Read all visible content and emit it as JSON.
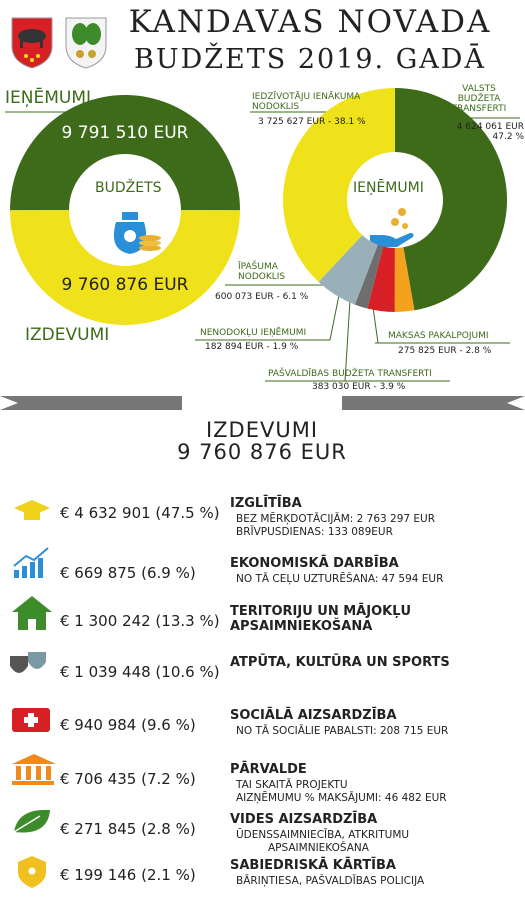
{
  "header": {
    "title_line1": "KANDAVAS NOVADA",
    "title_line2": "BUDŽETS 2019. GADĀ"
  },
  "chart_data": [
    {
      "type": "donut",
      "center_label": "BUDŽETS",
      "series": [
        {
          "name": "IEŅĒMUMI",
          "color": "#3d6b1a",
          "values": [
            9791510
          ],
          "value_labels": [
            "9 791 510 EUR"
          ]
        },
        {
          "name": "IZDEVUMI",
          "color": "#f0e21a",
          "values": [
            9760876
          ],
          "value_labels": [
            "9 760 876 EUR"
          ]
        }
      ]
    },
    {
      "type": "donut",
      "center_label": "IEŅĒMUMI",
      "categories": [
        "VALSTS BUDŽETA TRANSFERTI",
        "MAKSAS PAKALPOJUMI",
        "PAŠVALDĪBAS BUDŽETA TRANSFERTI",
        "NENODOKĻU IEŅĒMUMI",
        "ĪPAŠUMA NODOKLIS",
        "IEDZĪVOTĀJU IENĀKUMA NODOKLIS"
      ],
      "values": [
        4624061,
        275825,
        383030,
        182894,
        600073,
        3725627
      ],
      "value_labels": [
        "4 624 061 EUR 47.2 %",
        "275 825 EUR - 2.8 %",
        "383 030 EUR - 3.9 %",
        "182 894 EUR - 1.9 %",
        "600 073 EUR - 6.1 %",
        "3 725 627 EUR - 38.1 %"
      ],
      "colors": [
        "#3d6b1a",
        "#f4a21c",
        "#d71f26",
        "#6e6e6e",
        "#9ab0b8",
        "#f0e21a"
      ]
    }
  ],
  "expenses": {
    "title": "IZDEVUMI",
    "total": "9 760 876 EUR",
    "items": [
      {
        "amount": "€ 4 632 901 (47.5 %)",
        "name": "IZGLĪTĪBA",
        "details": [
          "BEZ MĒRĶDOTĀCIJĀM: 2 763 297 EUR",
          "BRĪVPUSDIENAS:  133 089EUR"
        ]
      },
      {
        "amount": "€ 669 875 (6.9 %)",
        "name": "EKONOMISKĀ DARBĪBA",
        "details": [
          "NO TĀ CEĻU UZTURĒŠANA: 47 594 EUR"
        ]
      },
      {
        "amount": "€ 1 300 242 (13.3 %)",
        "name": "TERITORIJU UN MĀJOKĻU APSAIMNIEKOŠANA",
        "details": []
      },
      {
        "amount": "€ 1 039 448 (10.6 %)",
        "name": "ATPŪTA, KULTŪRA UN SPORTS",
        "details": []
      },
      {
        "amount": "€ 940 984 (9.6 %)",
        "name": "SOCIĀLĀ AIZSARDZĪBA",
        "details": [
          "NO TĀ SOCIĀLIE PABALSTI: 208 715 EUR"
        ]
      },
      {
        "amount": "€ 706 435 (7.2 %)",
        "name": "PĀRVALDE",
        "details": [
          "TAI SKAITĀ PROJEKTU",
          "AIZŅĒMUMU % MAKSĀJUMI: 46 482 EUR"
        ]
      },
      {
        "amount": "€ 271 845 (2.8 %)",
        "name": "VIDES AIZSARDZĪBA",
        "details": [
          "ŪDENSSAIMNIECĪBA, ATKRITUMU",
          "APSAIMNIEKOŠANA"
        ]
      },
      {
        "amount": "€ 199 146 (2.1 %)",
        "name": "SABIEDRISKĀ KĀRTĪBA",
        "details": [
          "BĀRIŅTIESA, PAŠVALDĪBAS POLICIJA"
        ]
      }
    ]
  }
}
